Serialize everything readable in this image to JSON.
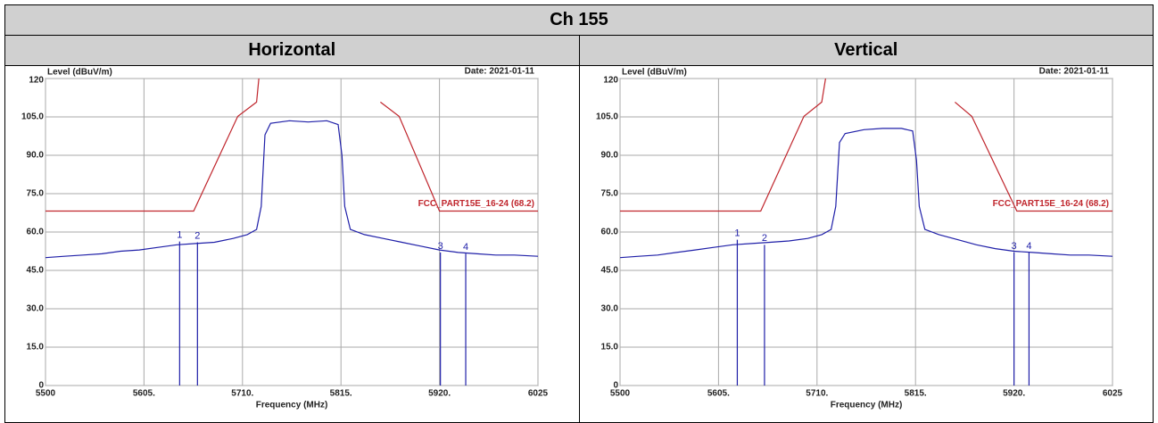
{
  "table": {
    "title": "Ch 155",
    "columns": [
      "Horizontal",
      "Vertical"
    ]
  },
  "chart_data": [
    {
      "type": "line",
      "y_label": "Level (dBuV/m)",
      "date": "Date: 2021-01-11",
      "x_label": "Frequency (MHz)",
      "xlim": [
        5500,
        6025
      ],
      "ylim": [
        0,
        120
      ],
      "xticks": [
        5500,
        {
          "value": 5605,
          "label": "5605."
        },
        {
          "value": 5710,
          "label": "5710."
        },
        {
          "value": 5815,
          "label": "5815."
        },
        {
          "value": 5920,
          "label": "5920."
        },
        6025
      ],
      "yticks": [
        0,
        {
          "value": 15,
          "label": "15.0"
        },
        {
          "value": 30,
          "label": "30.0"
        },
        {
          "value": 45,
          "label": "45.0"
        },
        {
          "value": 60,
          "label": "60.0"
        },
        {
          "value": 75,
          "label": "75.0"
        },
        {
          "value": 90,
          "label": "90.0"
        },
        {
          "value": 105,
          "label": "105.0"
        },
        120
      ],
      "grid": true,
      "series": [
        {
          "color": "#1f1fa8",
          "x": [
            5500,
            5520,
            5540,
            5560,
            5580,
            5600,
            5620,
            5640,
            5660,
            5680,
            5700,
            5715,
            5725,
            5730,
            5734,
            5740,
            5760,
            5780,
            5800,
            5812,
            5816,
            5819,
            5825,
            5840,
            5860,
            5880,
            5900,
            5920,
            5940,
            5960,
            5980,
            6000,
            6025
          ],
          "y": [
            50,
            50.5,
            51,
            51.5,
            52.5,
            53,
            54,
            55,
            55.5,
            56,
            57.5,
            59,
            61,
            70,
            98,
            102.5,
            103.5,
            103,
            103.5,
            102,
            90,
            70,
            61,
            59,
            57.5,
            56,
            54.5,
            53,
            52,
            51.5,
            51,
            51,
            50.5
          ]
        },
        {
          "name": "FCC_PART15E_16-24 (68.2)",
          "color": "#c0262d",
          "x": [
            5500,
            5658,
            5705,
            5725,
            5728,
            5853,
            5857,
            5877,
            5920,
            6025
          ],
          "y": [
            68.2,
            68.2,
            105.2,
            110.8,
            122,
            null,
            110.8,
            105.2,
            68.2,
            68.2
          ]
        }
      ],
      "markers": [
        {
          "label": "1",
          "x": 5643,
          "y": 56.3
        },
        {
          "label": "2",
          "x": 5662,
          "y": 56
        },
        {
          "label": "3",
          "x": 5921,
          "y": 52
        },
        {
          "label": "4",
          "x": 5948,
          "y": 51.6
        }
      ]
    },
    {
      "type": "line",
      "y_label": "Level (dBuV/m)",
      "date": "Date: 2021-01-11",
      "x_label": "Frequency (MHz)",
      "xlim": [
        5500,
        6025
      ],
      "ylim": [
        0,
        120
      ],
      "xticks": [
        5500,
        {
          "value": 5605,
          "label": "5605."
        },
        {
          "value": 5710,
          "label": "5710."
        },
        {
          "value": 5815,
          "label": "5815."
        },
        {
          "value": 5920,
          "label": "5920."
        },
        6025
      ],
      "yticks": [
        0,
        {
          "value": 15,
          "label": "15.0"
        },
        {
          "value": 30,
          "label": "30.0"
        },
        {
          "value": 45,
          "label": "45.0"
        },
        {
          "value": 60,
          "label": "60.0"
        },
        {
          "value": 75,
          "label": "75.0"
        },
        {
          "value": 90,
          "label": "90.0"
        },
        {
          "value": 105,
          "label": "105.0"
        },
        120
      ],
      "grid": true,
      "series": [
        {
          "color": "#1f1fa8",
          "x": [
            5500,
            5520,
            5540,
            5560,
            5580,
            5600,
            5620,
            5640,
            5660,
            5680,
            5700,
            5715,
            5725,
            5730,
            5734,
            5740,
            5760,
            5780,
            5800,
            5812,
            5816,
            5819,
            5825,
            5840,
            5860,
            5880,
            5900,
            5920,
            5940,
            5960,
            5980,
            6000,
            6025
          ],
          "y": [
            50,
            50.5,
            51,
            52,
            53,
            54,
            55,
            55.5,
            56,
            56.5,
            57.5,
            59,
            61,
            70,
            95,
            98.5,
            100,
            100.5,
            100.5,
            99.5,
            88,
            70,
            61,
            59,
            57,
            55,
            53.5,
            52.5,
            52,
            51.5,
            51,
            51,
            50.5
          ]
        },
        {
          "name": "FCC_PART15E_16-24 (68.2)",
          "color": "#c0262d",
          "x": [
            5500,
            5650,
            5696,
            5715,
            5720,
            5851,
            5857,
            5875,
            5923,
            6025
          ],
          "y": [
            68.2,
            68.2,
            105.2,
            110.8,
            122,
            null,
            110.8,
            105.2,
            68.2,
            68.2
          ]
        }
      ],
      "markers": [
        {
          "label": "1",
          "x": 5625,
          "y": 57
        },
        {
          "label": "2",
          "x": 5654,
          "y": 55
        },
        {
          "label": "3",
          "x": 5920,
          "y": 52
        },
        {
          "label": "4",
          "x": 5936,
          "y": 52
        }
      ]
    }
  ]
}
